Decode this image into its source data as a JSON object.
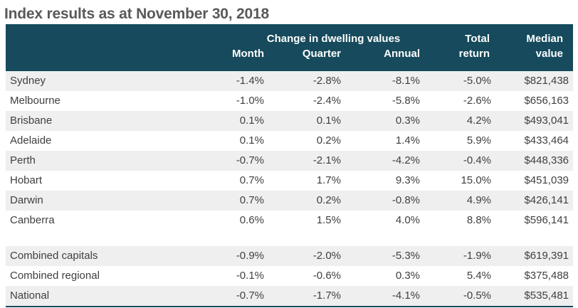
{
  "page_title": "Index results as at November 30, 2018",
  "colors": {
    "header_bg": "#164a5c",
    "header_text": "#ffffff",
    "title_text": "#595959",
    "body_text": "#3f3f3f",
    "stripe_bg": "#efefef",
    "row_bg": "#ffffff"
  },
  "chart_data": {
    "type": "table",
    "title": "Index results as at November 30, 2018",
    "header": {
      "group_label": "Change in dwelling values",
      "month_label": "Month",
      "quarter_label": "Quarter",
      "annual_label": "Annual",
      "total_line1": "Total",
      "total_line2": "return",
      "median_line1": "Median",
      "median_line2": "value"
    },
    "columns": [
      "",
      "Month",
      "Quarter",
      "Annual",
      "Total return",
      "Median value"
    ],
    "city_rows": [
      {
        "name": "Sydney",
        "month": "-1.4%",
        "quarter": "-2.8%",
        "annual": "-8.1%",
        "total_return": "-5.0%",
        "median_value": "$821,438"
      },
      {
        "name": "Melbourne",
        "month": "-1.0%",
        "quarter": "-2.4%",
        "annual": "-5.8%",
        "total_return": "-2.6%",
        "median_value": "$656,163"
      },
      {
        "name": "Brisbane",
        "month": "0.1%",
        "quarter": "0.1%",
        "annual": "0.3%",
        "total_return": "4.2%",
        "median_value": "$493,041"
      },
      {
        "name": "Adelaide",
        "month": "0.1%",
        "quarter": "0.2%",
        "annual": "1.4%",
        "total_return": "5.9%",
        "median_value": "$433,464"
      },
      {
        "name": "Perth",
        "month": "-0.7%",
        "quarter": "-2.1%",
        "annual": "-4.2%",
        "total_return": "-0.4%",
        "median_value": "$448,336"
      },
      {
        "name": "Hobart",
        "month": "0.7%",
        "quarter": "1.7%",
        "annual": "9.3%",
        "total_return": "15.0%",
        "median_value": "$451,039"
      },
      {
        "name": "Darwin",
        "month": "0.7%",
        "quarter": "0.2%",
        "annual": "-0.8%",
        "total_return": "4.9%",
        "median_value": "$426,141"
      },
      {
        "name": "Canberra",
        "month": "0.6%",
        "quarter": "1.5%",
        "annual": "4.0%",
        "total_return": "8.8%",
        "median_value": "$596,141"
      }
    ],
    "summary_rows": [
      {
        "name": "Combined capitals",
        "month": "-0.9%",
        "quarter": "-2.0%",
        "annual": "-5.3%",
        "total_return": "-1.9%",
        "median_value": "$619,391"
      },
      {
        "name": "Combined regional",
        "month": "-0.1%",
        "quarter": "-0.6%",
        "annual": "0.3%",
        "total_return": "5.4%",
        "median_value": "$375,488"
      },
      {
        "name": "National",
        "month": "-0.7%",
        "quarter": "-1.7%",
        "annual": "-4.1%",
        "total_return": "-0.5%",
        "median_value": "$535,481"
      }
    ]
  }
}
